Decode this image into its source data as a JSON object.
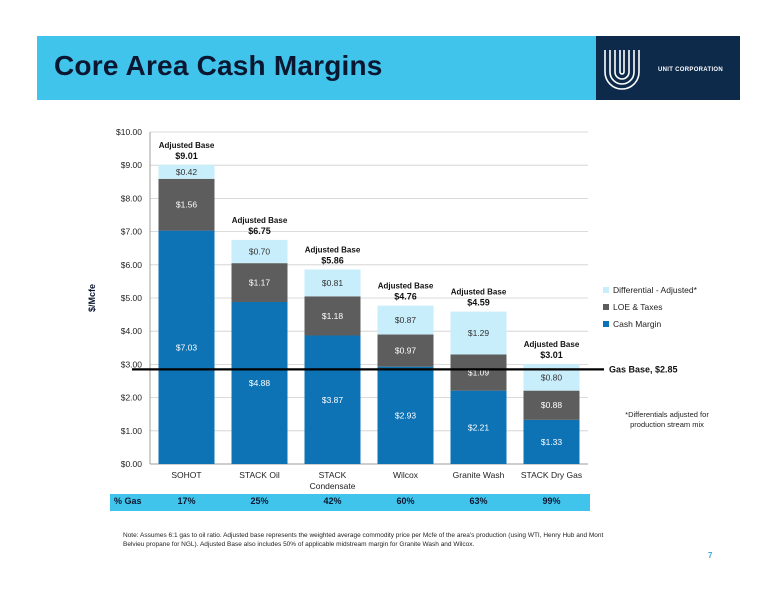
{
  "header": {
    "title": "Core Area Cash Margins",
    "logo_text": "UNIT CORPORATION"
  },
  "chart_data": {
    "type": "bar",
    "stacked": true,
    "ylabel": "$/Mcfe",
    "ylim": [
      0,
      10
    ],
    "yticks": [
      "$0.00",
      "$1.00",
      "$2.00",
      "$3.00",
      "$4.00",
      "$5.00",
      "$6.00",
      "$7.00",
      "$8.00",
      "$9.00",
      "$10.00"
    ],
    "categories": [
      "SOHOT",
      "STACK Oil",
      "STACK Condensate",
      "Wilcox",
      "Granite Wash",
      "STACK Dry Gas"
    ],
    "category_labels": [
      [
        "SOHOT"
      ],
      [
        "STACK Oil"
      ],
      [
        "STACK",
        "Condensate"
      ],
      [
        "Wilcox"
      ],
      [
        "Granite Wash"
      ],
      [
        "STACK Dry Gas"
      ]
    ],
    "series": [
      {
        "name": "Cash Margin",
        "values": [
          7.03,
          4.88,
          3.87,
          2.93,
          2.21,
          1.33
        ],
        "labels": [
          "$7.03",
          "$4.88",
          "$3.87",
          "$2.93",
          "$2.21",
          "$1.33"
        ],
        "color": "#0d73b5"
      },
      {
        "name": "LOE & Taxes",
        "values": [
          1.56,
          1.17,
          1.18,
          0.97,
          1.09,
          0.88
        ],
        "labels": [
          "$1.56",
          "$1.17",
          "$1.18",
          "$0.97",
          "$1.09",
          "$0.88"
        ],
        "color": "#5d5d5d"
      },
      {
        "name": "Differential - Adjusted",
        "legend_suffix": "*",
        "values": [
          0.42,
          0.7,
          0.81,
          0.87,
          1.29,
          0.8
        ],
        "labels": [
          "$0.42",
          "$0.70",
          "$0.81",
          "$0.87",
          "$1.29",
          "$0.80"
        ],
        "color": "#c9eefb"
      }
    ],
    "adjusted_base_label": "Adjusted Base",
    "adjusted_base": [
      "$9.01",
      "$6.75",
      "$5.86",
      "$4.76",
      "$4.59",
      "$3.01"
    ],
    "gas_base": {
      "value": 2.85,
      "label": "Gas Base,  $2.85"
    },
    "legend_placement": "right"
  },
  "gas_row": {
    "label": "% Gas",
    "values": [
      "17%",
      "25%",
      "42%",
      "60%",
      "63%",
      "99%"
    ]
  },
  "diff_note": "*Differentials adjusted for production stream mix",
  "footnote": "Note: Assumes 6:1 gas to oil ratio. Adjusted base represents the weighted average commodity price per Mcfe of the area's production (using WTI, Henry Hub and Mont Belvieu propane for NGL). Adjusted Base also includes 50% of applicable midstream margin for Granite Wash and Wilcox.",
  "page_number": "7"
}
